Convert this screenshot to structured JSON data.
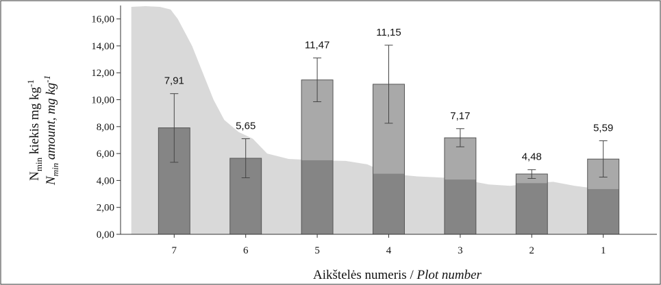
{
  "chart_data": {
    "type": "bar",
    "categories": [
      "7",
      "6",
      "5",
      "4",
      "3",
      "2",
      "1"
    ],
    "values": [
      7.91,
      5.65,
      11.47,
      11.15,
      7.17,
      4.48,
      5.59
    ],
    "value_labels": [
      "7,91",
      "5,65",
      "11,47",
      "11,15",
      "7,17",
      "4,48",
      "5,59"
    ],
    "error_low": [
      5.35,
      4.2,
      9.85,
      8.25,
      6.5,
      4.15,
      4.25
    ],
    "error_high": [
      10.45,
      7.1,
      13.1,
      14.05,
      7.85,
      4.8,
      6.95
    ],
    "category_positions": [
      7,
      6,
      5,
      4,
      3,
      2,
      1
    ],
    "xlim": [
      0.25,
      7.75
    ],
    "ylim": [
      0,
      17
    ],
    "yticks": [
      0,
      2,
      4,
      6,
      8,
      10,
      12,
      14,
      16
    ],
    "ytick_labels": [
      "0,00",
      "2,00",
      "4,00",
      "6,00",
      "8,00",
      "10,00",
      "12,00",
      "14,00",
      "16,00"
    ],
    "ylabel": {
      "line1_main": "N",
      "line1_sub": "min",
      "line1_rest": " kiekis mg kg",
      "line1_sup": "-1",
      "line2_main": "N",
      "line2_sub": "min",
      "line2_rest": " amount, mg kg",
      "line2_sup": "-1"
    },
    "xlabel": {
      "main": "Aikštelės numeris / ",
      "italic": "Plot number"
    },
    "background_profile": {
      "description_free": true,
      "x": [
        7.6,
        7.4,
        7.2,
        7.05,
        6.95,
        6.85,
        6.75,
        6.6,
        6.45,
        6.3,
        6.1,
        5.9,
        5.7,
        5.4,
        5.0,
        4.6,
        4.3,
        4.0,
        3.6,
        3.2,
        2.9,
        2.6,
        2.3,
        2.0,
        1.7,
        1.4,
        1.1,
        0.85
      ],
      "y": [
        16.9,
        16.95,
        16.9,
        16.7,
        16.0,
        15.0,
        14.0,
        12.0,
        10.0,
        8.5,
        7.6,
        7.1,
        6.0,
        5.6,
        5.5,
        5.45,
        5.2,
        4.5,
        4.3,
        4.2,
        4.0,
        3.7,
        3.6,
        3.8,
        3.9,
        3.6,
        3.4,
        3.3
      ]
    },
    "colors": {
      "bar_fill": "#a9a9a9",
      "bar_stroke": "#555555",
      "background_area": "#d9d9d9",
      "overlap_dark": "#858585",
      "error_bar": "#444444"
    },
    "grid": false,
    "legend": "none"
  }
}
